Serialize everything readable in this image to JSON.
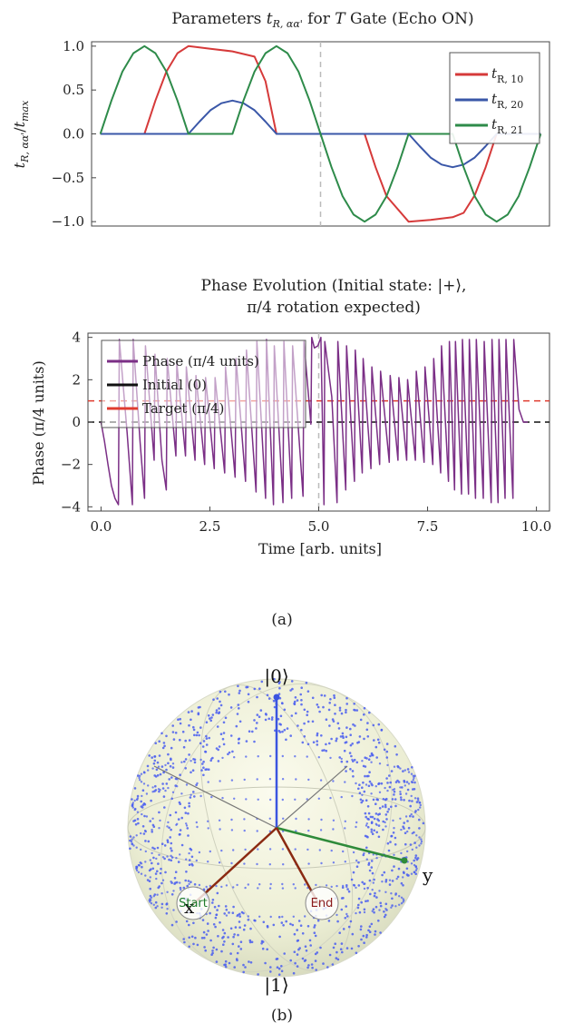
{
  "panel_a_caption": "(a)",
  "panel_b_caption": "(b)",
  "colors": {
    "t10": "#d63a3a",
    "t20": "#3a57a8",
    "t21": "#2e8b4a",
    "phase": "#7b2f86",
    "initial": "#111111",
    "target": "#e03b2f",
    "echo_line": "#bbbbbb"
  },
  "chart_data": [
    {
      "type": "line",
      "title": "Parameters t_{R, αα'} for T Gate (Echo ON)",
      "ylabel": "t_{R, αα'}/t_{max}",
      "xlim": [
        -0.2,
        10.2
      ],
      "ylim": [
        -1.05,
        1.05
      ],
      "yticks": [
        "1.0",
        "0.5",
        "0.0",
        "−0.5",
        "−1.0"
      ],
      "legend_position": "top-right",
      "vertical_marker_x": 5.0,
      "series": [
        {
          "name": "t_{R, 10}",
          "x": [
            0,
            0.5,
            1,
            1.25,
            1.5,
            1.75,
            2,
            2.5,
            3,
            3.5,
            3.75,
            4,
            4.5,
            5,
            5.5,
            6,
            6.25,
            6.5,
            7,
            7.5,
            8,
            8.25,
            8.5,
            8.75,
            9,
            9.5,
            10
          ],
          "y": [
            0,
            0,
            0,
            0.38,
            0.71,
            0.92,
            1.0,
            0.97,
            0.94,
            0.88,
            0.6,
            0,
            0,
            0,
            0,
            0,
            -0.38,
            -0.71,
            -1.0,
            -0.98,
            -0.95,
            -0.9,
            -0.7,
            -0.38,
            0,
            0,
            0
          ]
        },
        {
          "name": "t_{R, 20}",
          "x": [
            0,
            1,
            2,
            2.25,
            2.5,
            2.75,
            3,
            3.25,
            3.5,
            3.75,
            4,
            5,
            6,
            7,
            7.25,
            7.5,
            7.75,
            8,
            8.25,
            8.5,
            8.75,
            9,
            10
          ],
          "y": [
            0,
            0,
            0,
            0.14,
            0.27,
            0.35,
            0.38,
            0.35,
            0.27,
            0.14,
            0,
            0,
            0,
            0,
            -0.14,
            -0.27,
            -0.35,
            -0.38,
            -0.35,
            -0.27,
            -0.14,
            0,
            0
          ]
        },
        {
          "name": "t_{R, 21}",
          "x": [
            0,
            0.25,
            0.5,
            0.75,
            1,
            1.25,
            1.5,
            1.75,
            2,
            3,
            3.25,
            3.5,
            3.75,
            4,
            4.25,
            4.5,
            4.75,
            5,
            5.25,
            5.5,
            5.75,
            6,
            6.25,
            6.5,
            6.75,
            7,
            8,
            8.25,
            8.5,
            8.75,
            9,
            9.25,
            9.5,
            9.75,
            10
          ],
          "y": [
            0,
            0.38,
            0.71,
            0.92,
            1.0,
            0.92,
            0.71,
            0.38,
            0,
            0,
            0.38,
            0.71,
            0.92,
            1.0,
            0.92,
            0.71,
            0.38,
            0,
            -0.38,
            -0.71,
            -0.92,
            -1.0,
            -0.92,
            -0.71,
            -0.38,
            0,
            0,
            -0.38,
            -0.71,
            -0.92,
            -1.0,
            -0.92,
            -0.71,
            -0.38,
            0
          ]
        }
      ]
    },
    {
      "type": "line",
      "title_line1": "Phase Evolution (Initial state: |+⟩,",
      "title_line2": "π/4 rotation expected)",
      "xlabel": "Time [arb. units]",
      "ylabel": "Phase (π/4 units)",
      "xlim": [
        -0.3,
        10.3
      ],
      "ylim": [
        -4.2,
        4.2
      ],
      "xticks": [
        "0.0",
        "2.5",
        "5.0",
        "7.5",
        "10.0"
      ],
      "yticks": [
        "4",
        "2",
        "0",
        "−2",
        "−4"
      ],
      "legend_position": "top-left",
      "vertical_marker_x": 5.0,
      "series": [
        {
          "name": "Phase (π/4 units)",
          "x": [
            0.0,
            0.08,
            0.16,
            0.24,
            0.32,
            0.4,
            0.42,
            0.6,
            0.72,
            0.74,
            0.9,
            1.0,
            1.02,
            1.22,
            1.24,
            1.4,
            1.5,
            1.52,
            1.72,
            1.74,
            1.94,
            1.96,
            2.16,
            2.18,
            2.38,
            2.4,
            2.6,
            2.62,
            2.84,
            2.86,
            3.08,
            3.1,
            3.32,
            3.34,
            3.56,
            3.58,
            3.78,
            3.8,
            3.96,
            3.98,
            4.18,
            4.2,
            4.38,
            4.4,
            4.64,
            4.66,
            4.82,
            4.84,
            4.9,
            4.98,
            5.05,
            5.12,
            5.14,
            5.3,
            5.42,
            5.44,
            5.62,
            5.64,
            5.82,
            5.84,
            6.0,
            6.02,
            6.2,
            6.22,
            6.4,
            6.42,
            6.62,
            6.64,
            6.82,
            6.84,
            7.02,
            7.04,
            7.22,
            7.24,
            7.42,
            7.44,
            7.62,
            7.64,
            7.8,
            7.82,
            7.98,
            8.0,
            8.12,
            8.14,
            8.28,
            8.3,
            8.44,
            8.46,
            8.6,
            8.62,
            8.78,
            8.8,
            8.96,
            8.98,
            9.12,
            9.14,
            9.28,
            9.3,
            9.46,
            9.48,
            9.6,
            9.7,
            9.8
          ],
          "y": [
            0.0,
            -0.9,
            -2.0,
            -3.0,
            -3.6,
            -3.9,
            3.9,
            -0.5,
            -3.9,
            3.9,
            -1.0,
            -3.6,
            3.6,
            -1.8,
            3.2,
            -1.8,
            -3.2,
            3.0,
            -1.6,
            2.8,
            -1.6,
            2.6,
            -1.8,
            2.2,
            -2.0,
            2.1,
            -2.2,
            2.1,
            -2.4,
            2.6,
            -2.6,
            3.0,
            -2.8,
            3.4,
            -3.3,
            3.8,
            -3.6,
            3.9,
            -3.9,
            3.6,
            -3.8,
            3.8,
            -3.6,
            3.6,
            -3.5,
            3.8,
            -0.1,
            4.0,
            3.5,
            3.6,
            4.0,
            -3.9,
            3.8,
            1.2,
            -3.8,
            3.8,
            -3.2,
            3.6,
            -2.8,
            3.4,
            -2.4,
            3.0,
            -2.2,
            2.6,
            -2.0,
            2.4,
            -1.9,
            2.2,
            -1.8,
            2.1,
            -1.8,
            2.0,
            -1.8,
            2.4,
            -1.9,
            2.6,
            -2.0,
            3.0,
            -2.4,
            3.6,
            -2.8,
            3.8,
            -3.2,
            3.8,
            -3.4,
            3.9,
            -3.4,
            3.9,
            -3.6,
            3.9,
            -3.6,
            3.8,
            -3.8,
            3.9,
            -3.8,
            3.9,
            -3.6,
            3.9,
            -3.6,
            3.9,
            0.6,
            0.0,
            0.0
          ]
        },
        {
          "name": "Initial (0)",
          "x": [
            -0.3,
            10.3
          ],
          "y": [
            0,
            0
          ]
        },
        {
          "name": "Target (π/4)",
          "x": [
            -0.3,
            10.3
          ],
          "y": [
            1,
            1
          ]
        }
      ]
    }
  ],
  "bloch": {
    "label_top": "|0⟩",
    "label_bottom": "|1⟩",
    "label_x": "x",
    "label_y": "y",
    "start_label": "Start",
    "end_label": "End",
    "colors": {
      "z_axis": "#3b55e0",
      "y_axis": "#2e8b3a",
      "path": "#8b2a12",
      "start_text": "#1d7a2a",
      "end_text": "#8b1a1a",
      "points": "#4a5ef0",
      "sphere": "#eef0d8"
    }
  }
}
